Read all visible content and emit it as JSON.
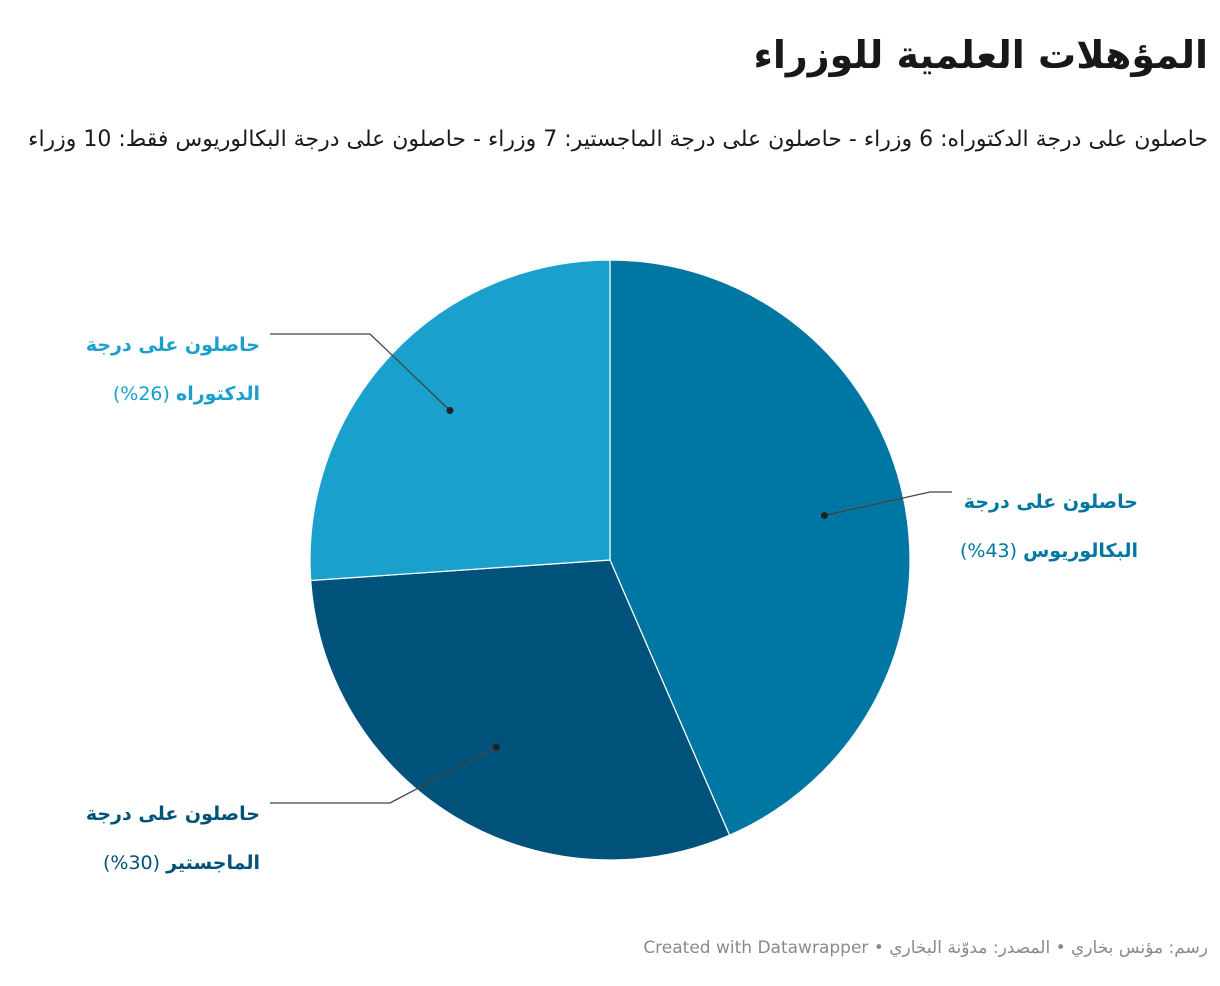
{
  "title": "المؤهلات العلمية للوزراء",
  "subtitle": "حاصلون على درجة الدكتوراه: 6 وزراء - حاصلون على درجة الماجستير: 7 وزراء - حاصلون على درجة البكالوريوس فقط: 10 وزراء",
  "chart_data": {
    "type": "pie",
    "title": "المؤهلات العلمية للوزراء",
    "slices": [
      {
        "label_line1": "حاصلون على درجة",
        "label_line2": "البكالوريوس",
        "percent_text": "(43%)",
        "value": 10,
        "color": "#0077a3"
      },
      {
        "label_line1": "حاصلون على درجة",
        "label_line2": "الماجستير",
        "percent_text": "(30%)",
        "value": 7,
        "color": "#00527a"
      },
      {
        "label_line1": "حاصلون على درجة",
        "label_line2": "الدكتوراه",
        "percent_text": "(26%)",
        "value": 6,
        "color": "#1aa0cd"
      }
    ]
  },
  "footer": "رسم: مؤنس بخاري • المصدر: مدوّنة البخاري • Created with Datawrapper"
}
